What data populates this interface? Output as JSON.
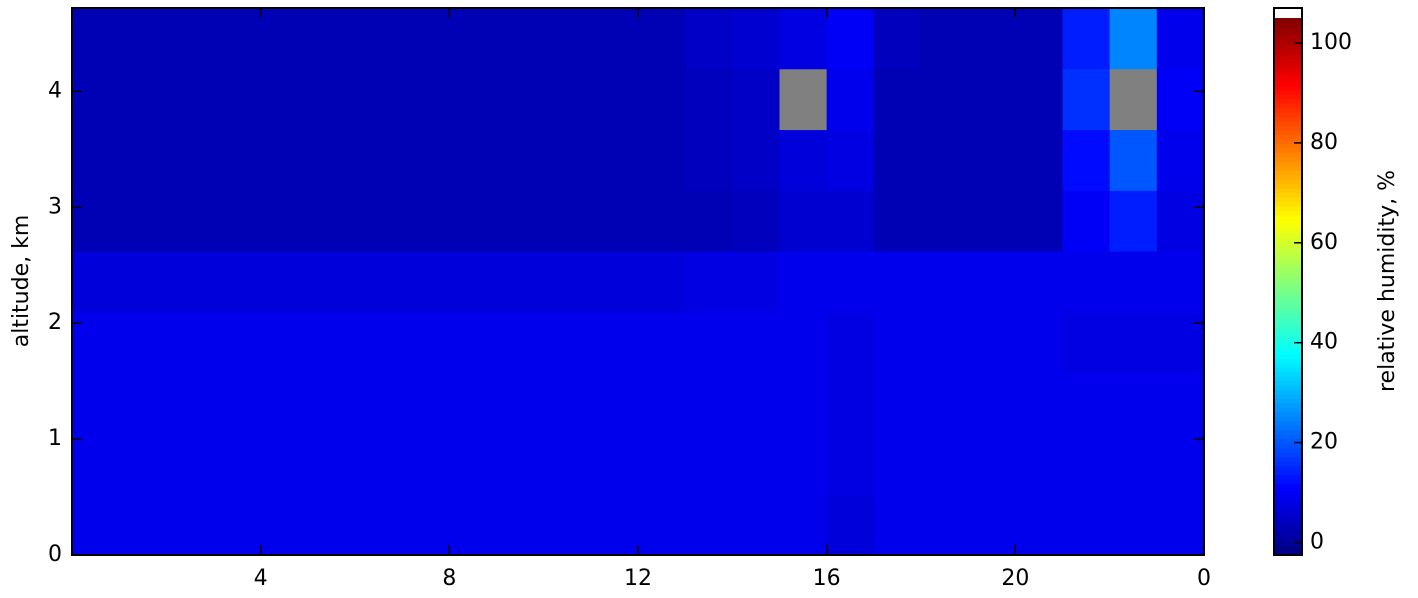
{
  "chart_data": {
    "type": "heatmap",
    "ylabel": "altitude, km",
    "xlim": [
      0,
      24
    ],
    "xticks": [
      4,
      8,
      12,
      16,
      20,
      {
        "value": 24,
        "label": "0"
      }
    ],
    "ylim": [
      0,
      4.72
    ],
    "yticks": [
      0,
      1,
      2,
      3,
      4
    ],
    "colormap": "jet",
    "missing_color": "#808080",
    "z": [
      [
        9,
        9,
        9,
        9,
        9,
        9,
        9,
        9,
        9,
        9,
        9,
        9,
        9,
        9,
        9,
        9,
        7,
        9,
        9,
        9,
        9,
        9,
        9,
        9
      ],
      [
        9,
        9,
        9,
        9,
        9,
        9,
        9,
        9,
        9,
        9,
        9,
        9,
        9,
        9,
        9,
        9,
        8,
        9,
        9,
        9,
        9,
        9,
        9,
        9
      ],
      [
        9,
        9,
        9,
        9,
        9,
        9,
        9,
        9,
        9,
        9,
        9,
        9,
        9,
        9,
        9,
        9,
        8,
        9,
        9,
        9,
        9,
        9,
        9,
        9
      ],
      [
        9,
        9,
        9,
        9,
        9,
        9,
        9,
        9,
        9,
        9,
        9,
        9,
        9,
        9,
        9,
        9,
        8,
        9,
        9,
        9,
        9,
        8,
        8,
        8
      ],
      [
        7,
        7,
        7,
        7,
        7,
        7,
        7,
        7,
        7,
        7,
        7,
        7,
        7,
        8,
        8,
        9,
        9,
        9,
        9,
        9,
        9,
        9,
        9,
        9
      ],
      [
        3,
        3,
        3,
        3,
        3,
        3,
        3,
        3,
        3,
        3,
        3,
        3,
        3,
        3,
        4,
        6,
        6,
        3,
        3,
        3,
        3,
        10,
        14,
        8
      ],
      [
        3,
        3,
        3,
        3,
        3,
        3,
        3,
        3,
        3,
        3,
        3,
        3,
        3,
        4,
        5,
        7,
        8,
        3,
        3,
        3,
        3,
        12,
        20,
        9
      ],
      [
        3,
        3,
        3,
        3,
        3,
        3,
        3,
        3,
        3,
        3,
        3,
        3,
        3,
        4,
        5,
        null,
        9,
        3,
        3,
        3,
        3,
        16,
        null,
        10
      ],
      [
        3,
        3,
        3,
        3,
        3,
        3,
        3,
        3,
        3,
        3,
        3,
        3,
        3,
        5,
        6,
        8,
        10,
        4,
        3,
        3,
        3,
        14,
        25,
        9
      ]
    ],
    "colorbar": {
      "label": "relative humidity, %",
      "lim": [
        -2.5,
        105
      ],
      "ticks": [
        0,
        20,
        40,
        60,
        80,
        100
      ]
    }
  }
}
